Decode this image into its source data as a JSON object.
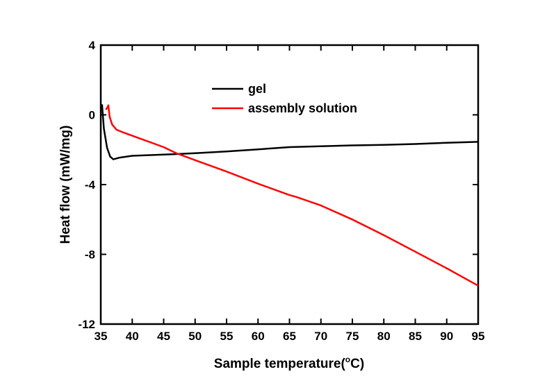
{
  "chart_data": {
    "type": "line",
    "title": "",
    "xlabel": "Sample temperature(",
    "xlabel_sup": "o",
    "xlabel_end": "C)",
    "ylabel": "Heat flow (mW/mg)",
    "xlim": [
      35,
      95
    ],
    "ylim": [
      -12,
      4
    ],
    "xticks": [
      "35",
      "40",
      "45",
      "50",
      "55",
      "60",
      "65",
      "70",
      "75",
      "80",
      "85",
      "90",
      "95"
    ],
    "yticks": [
      "4",
      "0",
      "-4",
      "-8",
      "-12"
    ],
    "legend_position": "top-center",
    "grid": false,
    "series": [
      {
        "name": "gel",
        "color": "#000000",
        "x": [
          35.2,
          35.5,
          36,
          36.5,
          37,
          38,
          40,
          45,
          50,
          55,
          60,
          65,
          70,
          75,
          80,
          85,
          90,
          95
        ],
        "y": [
          0.6,
          -0.8,
          -1.9,
          -2.4,
          -2.55,
          -2.45,
          -2.35,
          -2.28,
          -2.2,
          -2.1,
          -1.98,
          -1.85,
          -1.8,
          -1.75,
          -1.72,
          -1.67,
          -1.6,
          -1.55
        ]
      },
      {
        "name": "assembly solution",
        "color": "#ff0000",
        "x": [
          35.8,
          36.1,
          36.2,
          36.4,
          36.8,
          37.5,
          38.5,
          40,
          45,
          47,
          50,
          55,
          60,
          65,
          66,
          70,
          75,
          80,
          85,
          90,
          95
        ],
        "y": [
          0.3,
          0.45,
          0.55,
          -0.1,
          -0.55,
          -0.85,
          -1.0,
          -1.2,
          -1.85,
          -2.2,
          -2.6,
          -3.25,
          -3.95,
          -4.6,
          -4.7,
          -5.2,
          -6.0,
          -6.9,
          -7.85,
          -8.8,
          -9.8
        ]
      }
    ]
  }
}
